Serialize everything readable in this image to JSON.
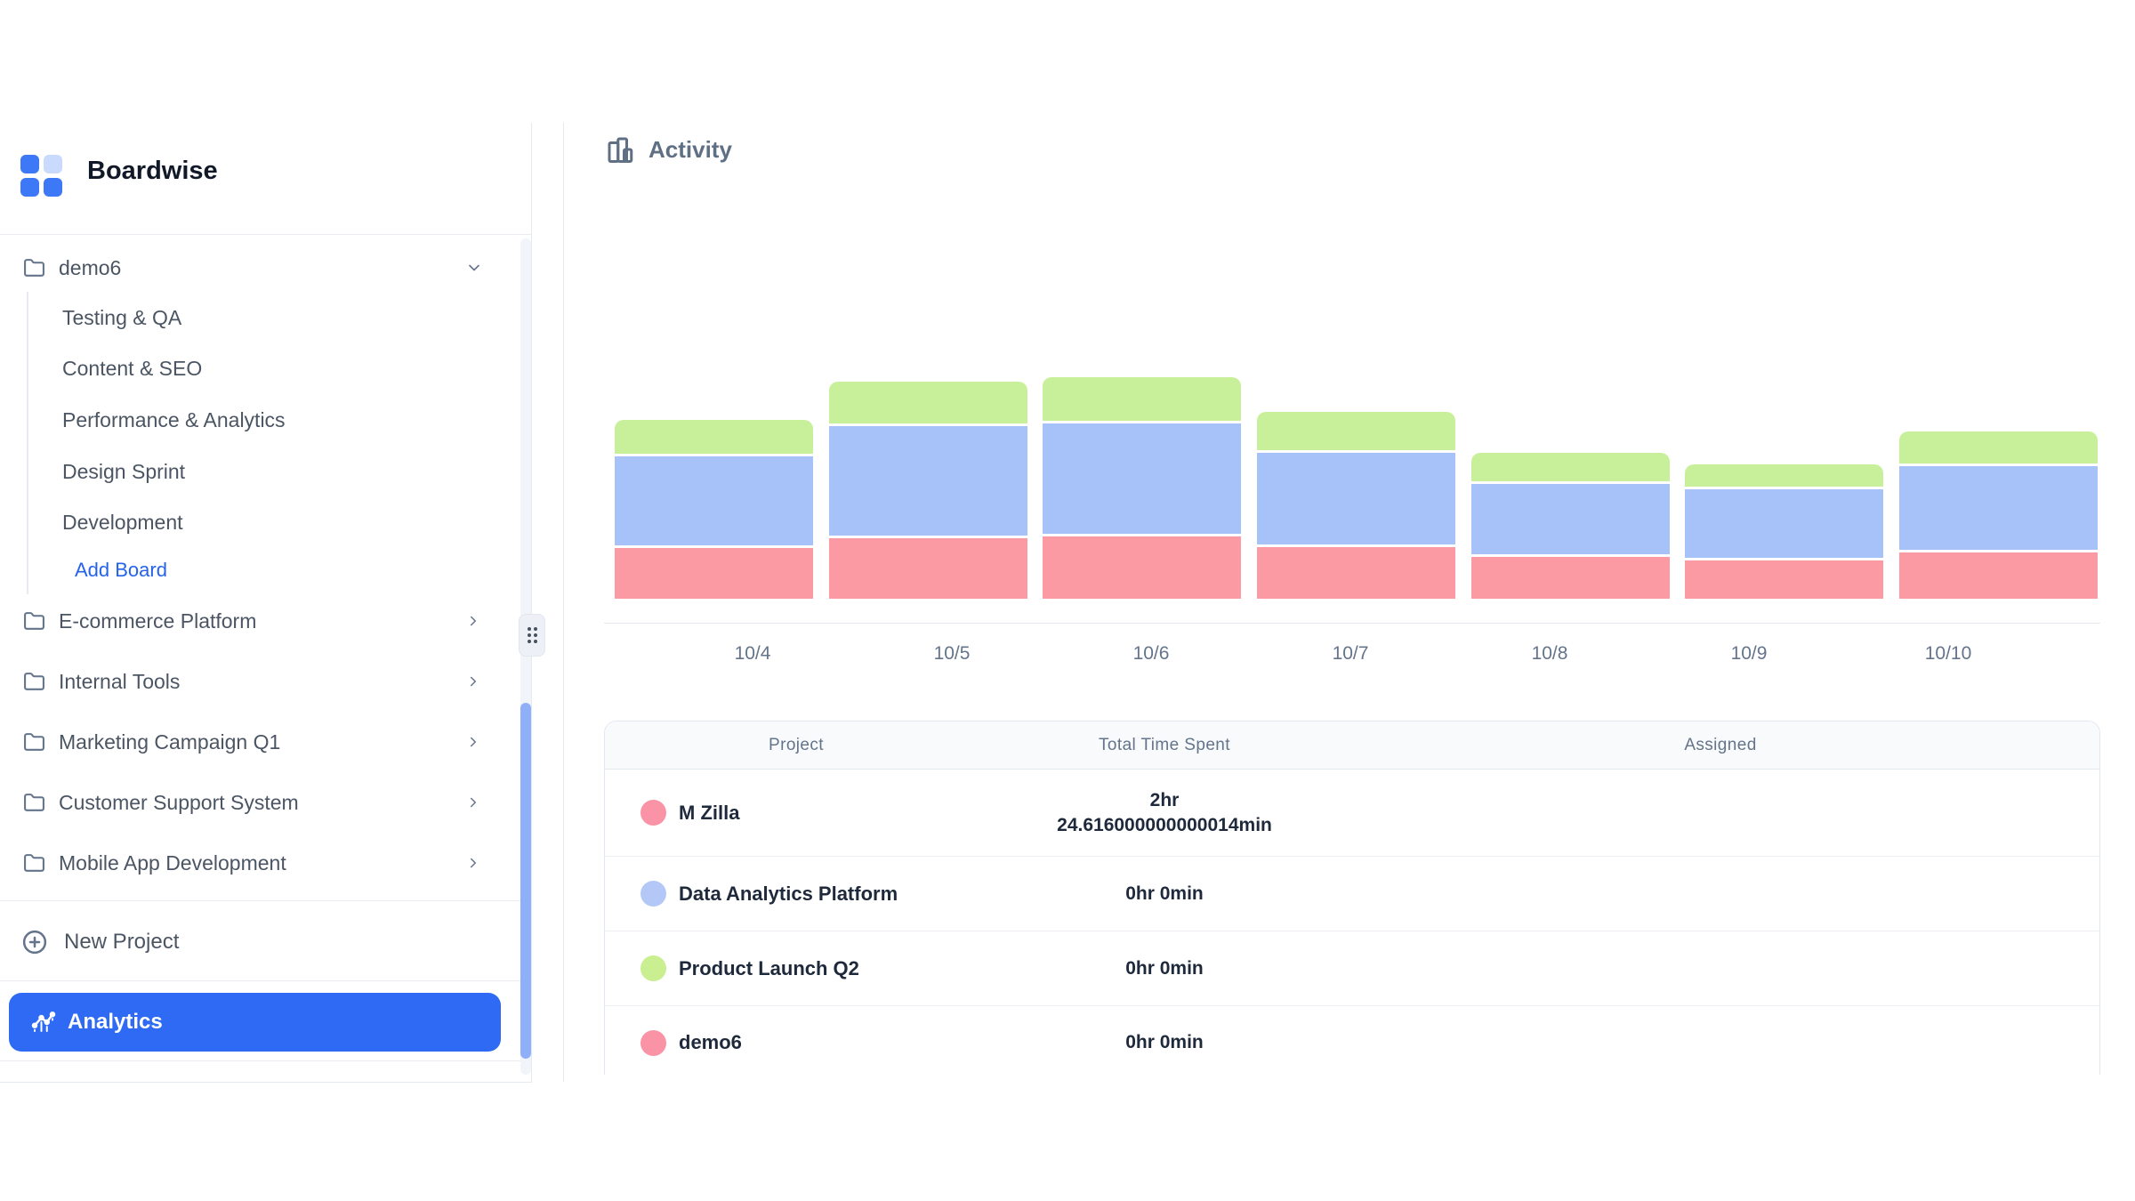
{
  "brand": {
    "name": "Boardwise"
  },
  "colors": {
    "accent_blue": "#2e6af3",
    "link_blue": "#2563eb",
    "avatar_blue": "#2e6ae8",
    "scroll_thumb": "#8fb0f8",
    "bar_pink": "#fb9aa3",
    "bar_blue": "#a6c2f8",
    "bar_green": "#c8f09a",
    "border": "#e5e9f0",
    "table_header_bg": "#f8fafc",
    "text_slate": "#64748b"
  },
  "icons": {
    "logo": "grid-2x2-icon",
    "folder": "folder-icon",
    "expand_open": "chevron-down-icon",
    "expand_closed": "chevron-right-icon",
    "new_project": "plus-circle-icon",
    "analytics": "line-chart-dots-icon",
    "activity": "bar-chart-icon",
    "drag_handle": "grip-dots-icon"
  },
  "sidebar": {
    "active_project": {
      "label": "demo6",
      "state": "expanded"
    },
    "boards": [
      "Testing & QA",
      "Content & SEO",
      "Performance & Analytics",
      "Design Sprint",
      "Development"
    ],
    "add_board_label": "Add Board",
    "projects": [
      "E-commerce Platform",
      "Internal Tools",
      "Marketing Campaign Q1",
      "Customer Support System",
      "Mobile App Development"
    ],
    "new_project_label": "New Project",
    "analytics_label": "Analytics"
  },
  "main": {
    "title": "Activity",
    "table": {
      "columns": [
        "Project",
        "Total Time Spent",
        "Assigned"
      ],
      "rows": [
        {
          "project": "M Zilla",
          "color": "#f993a5",
          "time1": "2hr",
          "time2": "24.616000000000014min"
        },
        {
          "project": "Data Analytics Platform",
          "color": "#b4c8f8",
          "time1": "0hr 0min",
          "time2": ""
        },
        {
          "project": "Product Launch Q2",
          "color": "#c9ef90",
          "time1": "0hr 0min",
          "time2": ""
        },
        {
          "project": "demo6",
          "color": "#f993a5",
          "time1": "0hr 0min",
          "time2": ""
        }
      ]
    }
  },
  "chart_data": {
    "type": "bar",
    "stacked": true,
    "title": "Activity",
    "categories": [
      "10/4",
      "10/5",
      "10/6",
      "10/7",
      "10/8",
      "10/9",
      "10/10"
    ],
    "series": [
      {
        "name": "M Zilla / demo6",
        "color": "#fb9aa3",
        "values": [
          57,
          68,
          70,
          58,
          47,
          43,
          52
        ]
      },
      {
        "name": "Data Analytics Platform",
        "color": "#a6c2f8",
        "values": [
          100,
          123,
          124,
          103,
          79,
          77,
          94
        ]
      },
      {
        "name": "Product Launch Q2",
        "color": "#c8f09a",
        "values": [
          38,
          47,
          49,
          43,
          32,
          25,
          36
        ]
      }
    ],
    "value_unit": "relative bar-segment height (px, no y-axis shown)",
    "xlabel": "",
    "ylabel": "",
    "grid": false,
    "legend_position": "none (colors keyed to project dots in table below)"
  }
}
